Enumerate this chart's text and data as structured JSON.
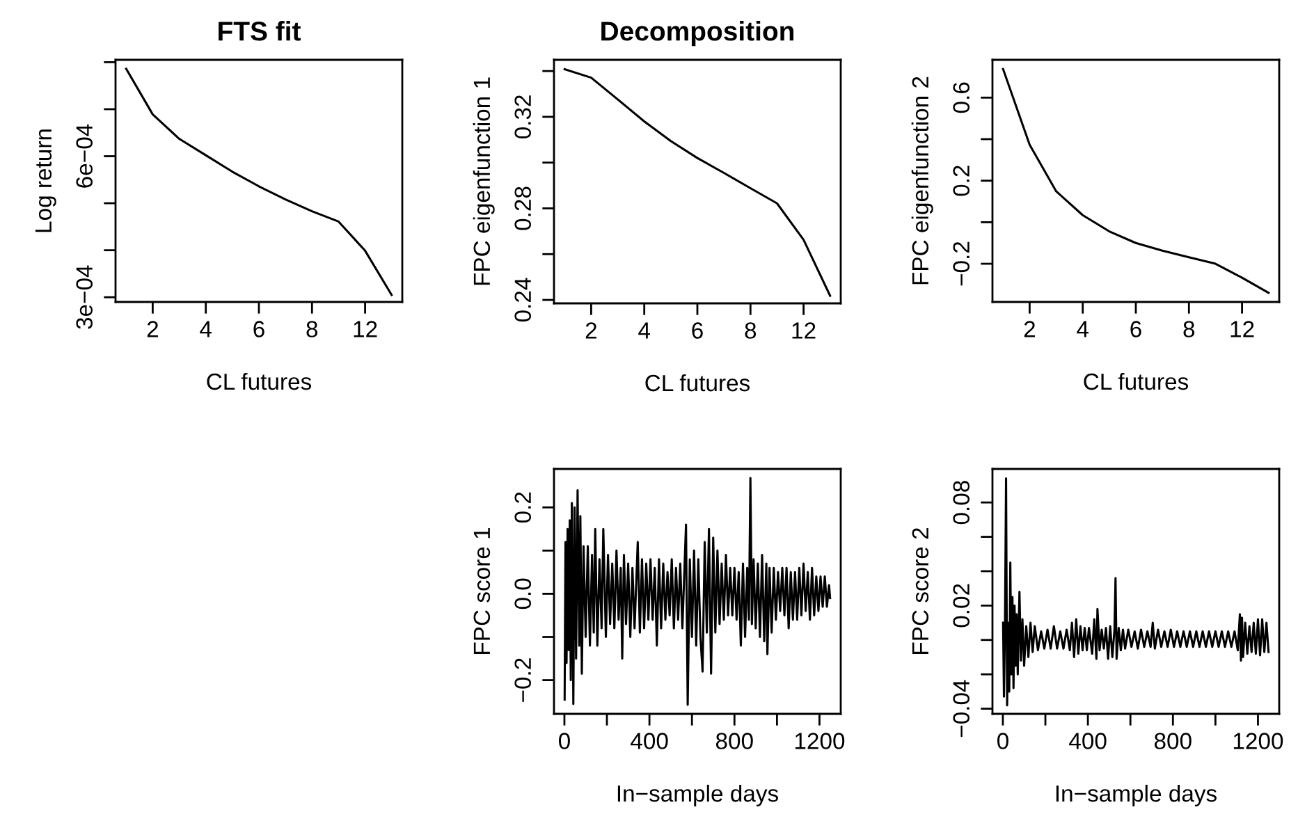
{
  "chart_data": [
    {
      "type": "line",
      "title": "FTS fit",
      "xlabel": "CL futures",
      "ylabel": "Log return",
      "categories": [
        null,
        "2",
        null,
        "4",
        null,
        "6",
        null,
        "8",
        null,
        "12",
        null
      ],
      "series": [
        {
          "color": "#000000",
          "values": [
            0.000786,
            0.000689,
            0.000637,
            0.000602,
            0.000567,
            0.000536,
            0.000508,
            0.000483,
            0.000461,
            0.000399,
            0.000305
          ]
        }
      ],
      "ylim": [
        0.00029,
        0.000805
      ],
      "yticks": [
        {
          "value": 0.0003,
          "label": "3e−04"
        },
        {
          "value": 0.0004,
          "label": null
        },
        {
          "value": 0.0005,
          "label": null
        },
        {
          "value": 0.0006,
          "label": "6e−04"
        },
        {
          "value": 0.0007,
          "label": null
        },
        {
          "value": 0.0008,
          "label": null
        }
      ],
      "grid": false
    },
    {
      "type": "line",
      "title": "Decomposition",
      "xlabel": "CL futures",
      "ylabel": "FPC eigenfunction 1",
      "categories": [
        null,
        "2",
        null,
        "4",
        null,
        "6",
        null,
        "8",
        null,
        "12",
        null
      ],
      "series": [
        {
          "color": "#000000",
          "values": [
            0.3408,
            0.3371,
            0.3276,
            0.318,
            0.3094,
            0.302,
            0.2955,
            0.2888,
            0.2822,
            0.2663,
            0.2418
          ]
        }
      ],
      "ylim": [
        0.2385,
        0.3449
      ],
      "yticks": [
        0.24,
        {
          "value": 0.26,
          "label": null
        },
        0.28,
        {
          "value": 0.3,
          "label": null
        },
        0.32,
        {
          "value": 0.34,
          "label": null
        }
      ],
      "grid": false
    },
    {
      "type": "line",
      "xlabel": "CL futures",
      "ylabel": "FPC eigenfunction 2",
      "categories": [
        null,
        "2",
        null,
        "4",
        null,
        "6",
        null,
        "8",
        null,
        "12",
        null
      ],
      "series": [
        {
          "color": "#000000",
          "values": [
            0.738,
            0.373,
            0.149,
            0.034,
            -0.044,
            -0.1,
            -0.137,
            -0.169,
            -0.2,
            -0.267,
            -0.34
          ]
        }
      ],
      "ylim": [
        -0.384,
        0.782
      ],
      "yticks": [
        {
          "value": -0.2,
          "label": "−0.2"
        },
        {
          "value": 0,
          "label": null
        },
        0.2,
        {
          "value": 0.4,
          "label": null
        },
        0.6
      ],
      "grid": false
    },
    {
      "type": "line",
      "xlabel": "In−sample days",
      "ylabel": "FPC score 1",
      "x": [
        1,
        5,
        10,
        15,
        20,
        25,
        30,
        35,
        42,
        48,
        55,
        62,
        70,
        75,
        82,
        90,
        100,
        110,
        120,
        130,
        138,
        145,
        155,
        165,
        175,
        183,
        195,
        205,
        215,
        225,
        235,
        245,
        255,
        265,
        272,
        280,
        290,
        300,
        310,
        320,
        330,
        345,
        355,
        365,
        375,
        385,
        395,
        405,
        415,
        425,
        435,
        445,
        455,
        465,
        475,
        485,
        495,
        505,
        515,
        525,
        535,
        545,
        555,
        565,
        572,
        580,
        590,
        600,
        610,
        620,
        630,
        640,
        650,
        660,
        670,
        680,
        690,
        700,
        710,
        720,
        730,
        740,
        750,
        760,
        770,
        780,
        790,
        800,
        810,
        820,
        830,
        840,
        850,
        860,
        868,
        875,
        882,
        890,
        900,
        910,
        920,
        930,
        940,
        950,
        955,
        965,
        975,
        985,
        995,
        1005,
        1015,
        1025,
        1035,
        1045,
        1055,
        1065,
        1075,
        1085,
        1095,
        1105,
        1115,
        1125,
        1135,
        1145,
        1155,
        1165,
        1175,
        1185,
        1195,
        1205,
        1215,
        1225,
        1235,
        1245,
        1250
      ],
      "series": [
        {
          "color": "#000000",
          "values": [
            -0.245,
            0.12,
            -0.16,
            0.15,
            -0.13,
            0.17,
            -0.2,
            0.21,
            -0.255,
            0.2,
            -0.15,
            0.24,
            -0.12,
            0.18,
            -0.185,
            0.11,
            -0.1,
            0.11,
            -0.12,
            0.09,
            -0.09,
            0.15,
            -0.12,
            0.08,
            -0.08,
            0.15,
            -0.1,
            0.09,
            -0.07,
            0.07,
            -0.08,
            0.1,
            -0.06,
            0.06,
            -0.15,
            0.09,
            -0.07,
            0.07,
            -0.1,
            0.06,
            -0.08,
            0.12,
            -0.09,
            0.08,
            -0.08,
            0.07,
            -0.06,
            0.08,
            -0.06,
            0.06,
            -0.12,
            0.08,
            -0.08,
            0.07,
            -0.06,
            0.05,
            -0.05,
            0.08,
            -0.08,
            0.06,
            -0.06,
            0.07,
            -0.08,
            0.06,
            0.16,
            -0.257,
            0.08,
            -0.1,
            0.1,
            -0.12,
            0.08,
            -0.1,
            -0.18,
            0.12,
            -0.09,
            0.15,
            -0.185,
            0.13,
            -0.09,
            0.1,
            -0.07,
            0.07,
            -0.06,
            0.09,
            -0.05,
            0.06,
            -0.05,
            0.06,
            -0.06,
            0.05,
            -0.12,
            0.07,
            -0.1,
            0.06,
            -0.06,
            0.268,
            -0.07,
            0.08,
            -0.08,
            0.07,
            -0.1,
            0.09,
            -0.11,
            0.07,
            -0.14,
            0.06,
            -0.09,
            0.06,
            -0.06,
            0.05,
            -0.04,
            0.06,
            -0.05,
            0.06,
            -0.08,
            0.05,
            -0.06,
            0.05,
            -0.06,
            0.06,
            -0.05,
            0.07,
            -0.04,
            0.05,
            -0.06,
            0.06,
            -0.05,
            0.04,
            -0.04,
            0.04,
            -0.03,
            0.04,
            -0.03,
            0.02,
            -0.01
          ]
        }
      ],
      "xlim": [
        -49,
        1300
      ],
      "ylim": [
        -0.278,
        0.289
      ],
      "xticks": [
        0,
        {
          "value": 200,
          "label": null
        },
        400,
        {
          "value": 600,
          "label": null
        },
        800,
        {
          "value": 1000,
          "label": null
        },
        1200
      ],
      "yticks": [
        {
          "value": -0.2,
          "label": "−0.2"
        },
        {
          "value": -0.1,
          "label": null
        },
        {
          "value": 0,
          "label": "0.0"
        },
        {
          "value": 0.1,
          "label": null
        },
        0.2
      ],
      "grid": false
    },
    {
      "type": "line",
      "xlabel": "In−sample days",
      "ylabel": "FPC score 2",
      "x": [
        1,
        5,
        10,
        15,
        20,
        25,
        30,
        35,
        40,
        45,
        50,
        55,
        60,
        65,
        70,
        78,
        85,
        92,
        100,
        110,
        120,
        130,
        140,
        150,
        165,
        180,
        195,
        210,
        225,
        240,
        255,
        270,
        285,
        300,
        315,
        325,
        335,
        345,
        355,
        365,
        375,
        385,
        395,
        405,
        420,
        430,
        440,
        445,
        455,
        465,
        475,
        485,
        495,
        505,
        515,
        525,
        530,
        535,
        545,
        555,
        565,
        575,
        590,
        605,
        620,
        635,
        650,
        665,
        680,
        695,
        705,
        715,
        730,
        745,
        760,
        775,
        790,
        805,
        820,
        835,
        850,
        865,
        880,
        895,
        910,
        925,
        940,
        955,
        970,
        985,
        1000,
        1015,
        1030,
        1045,
        1060,
        1075,
        1090,
        1105,
        1115,
        1120,
        1125,
        1130,
        1140,
        1150,
        1160,
        1170,
        1180,
        1190,
        1200,
        1210,
        1220,
        1230,
        1240,
        1250
      ],
      "series": [
        {
          "color": "#000000",
          "values": [
            0.01,
            -0.033,
            0.01,
            0.094,
            -0.038,
            0.01,
            -0.03,
            0.045,
            -0.02,
            0.025,
            -0.028,
            0.02,
            -0.015,
            0.015,
            -0.02,
            0.028,
            -0.012,
            0.012,
            -0.015,
            0.008,
            -0.01,
            0.01,
            -0.007,
            0.008,
            -0.006,
            0.005,
            -0.005,
            0.006,
            -0.005,
            0.008,
            -0.005,
            0.005,
            -0.005,
            0.006,
            -0.006,
            0.01,
            -0.01,
            0.012,
            -0.008,
            0.008,
            -0.006,
            0.007,
            -0.006,
            0.007,
            -0.008,
            0.012,
            -0.011,
            0.018,
            -0.006,
            0.006,
            -0.005,
            0.007,
            -0.011,
            0.008,
            -0.01,
            0.006,
            0.036,
            -0.011,
            0.007,
            -0.006,
            0.006,
            -0.005,
            0.006,
            -0.004,
            0.005,
            -0.005,
            0.006,
            -0.004,
            0.005,
            -0.004,
            0.01,
            -0.005,
            0.006,
            -0.004,
            0.005,
            -0.004,
            0.006,
            -0.004,
            0.005,
            -0.004,
            0.005,
            -0.004,
            0.005,
            -0.004,
            0.005,
            -0.004,
            0.005,
            -0.004,
            0.005,
            -0.004,
            0.005,
            -0.004,
            0.005,
            -0.004,
            0.005,
            -0.004,
            0.005,
            -0.006,
            0.015,
            -0.012,
            0.013,
            -0.01,
            0.01,
            -0.008,
            0.008,
            -0.007,
            0.01,
            -0.008,
            0.012,
            -0.009,
            0.012,
            -0.007,
            0.01,
            -0.007
          ]
        }
      ],
      "xlim": [
        -49,
        1300
      ],
      "ylim": [
        -0.043,
        0.0995
      ],
      "xticks": [
        0,
        {
          "value": 200,
          "label": null
        },
        400,
        {
          "value": 600,
          "label": null
        },
        800,
        {
          "value": 1000,
          "label": null
        },
        1200
      ],
      "yticks": [
        {
          "value": -0.04,
          "label": "−0.04"
        },
        {
          "value": -0.02,
          "label": null
        },
        {
          "value": 0,
          "label": null
        },
        0.02,
        {
          "value": 0.04,
          "label": null
        },
        {
          "value": 0.06,
          "label": null
        },
        0.08
      ],
      "grid": false
    }
  ]
}
